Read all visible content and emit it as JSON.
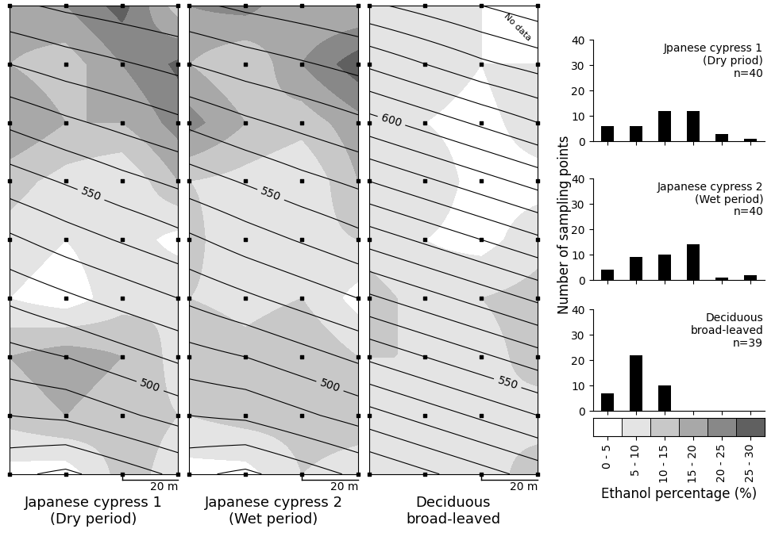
{
  "chart_data": [
    {
      "type": "contour_map",
      "title": "Japanese cypress 1\n(Dry period)",
      "x": [
        0,
        20,
        40,
        60
      ],
      "y": [
        0,
        20,
        40,
        60,
        80,
        100,
        120,
        140,
        160
      ],
      "xlim": [
        0,
        60
      ],
      "ylim": [
        0,
        160
      ],
      "tick_labels": false,
      "cells": [
        [
          3,
          2,
          12,
          8
        ],
        [
          12,
          15,
          12,
          10
        ],
        [
          15,
          18,
          15,
          8
        ],
        [
          5,
          2,
          8,
          10
        ],
        [
          8,
          5,
          8,
          3
        ],
        [
          12,
          8,
          5,
          15
        ],
        [
          20,
          15,
          15,
          22
        ],
        [
          15,
          12,
          20,
          26
        ],
        [
          18,
          20,
          27,
          12
        ]
      ],
      "elevation": [
        [
          462,
          458,
          465,
          472
        ],
        [
          480,
          482,
          488,
          494
        ],
        [
          496,
          500,
          506,
          512
        ],
        [
          512,
          518,
          524,
          530
        ],
        [
          528,
          535,
          541,
          547
        ],
        [
          545,
          551,
          557,
          562
        ],
        [
          562,
          568,
          573,
          578
        ],
        [
          580,
          585,
          589,
          593
        ],
        [
          598,
          602,
          605,
          608
        ]
      ],
      "contour_levels": [
        460,
        470,
        480,
        490,
        500,
        510,
        520,
        530,
        540,
        550,
        560,
        570,
        580,
        590,
        600
      ],
      "contour_labels": [
        500,
        550
      ],
      "scale_bar": {
        "length": 20,
        "label": "20 m"
      }
    },
    {
      "type": "contour_map",
      "title": "Japanese cypress 2\n(Wet period)",
      "x": [
        0,
        20,
        40,
        60
      ],
      "y": [
        0,
        20,
        40,
        60,
        80,
        100,
        120,
        140,
        160
      ],
      "xlim": [
        0,
        60
      ],
      "ylim": [
        0,
        160
      ],
      "tick_labels": false,
      "cells": [
        [
          3,
          3,
          10,
          8
        ],
        [
          10,
          12,
          12,
          12
        ],
        [
          15,
          12,
          15,
          10
        ],
        [
          10,
          8,
          10,
          3
        ],
        [
          12,
          5,
          8,
          10
        ],
        [
          10,
          8,
          5,
          15
        ],
        [
          22,
          15,
          12,
          18
        ],
        [
          15,
          10,
          20,
          28
        ],
        [
          20,
          22,
          15,
          15
        ]
      ],
      "elevation": [
        [
          462,
          458,
          465,
          472
        ],
        [
          480,
          482,
          488,
          494
        ],
        [
          496,
          500,
          506,
          512
        ],
        [
          512,
          518,
          524,
          530
        ],
        [
          528,
          535,
          541,
          547
        ],
        [
          545,
          551,
          557,
          562
        ],
        [
          562,
          568,
          573,
          578
        ],
        [
          580,
          585,
          589,
          593
        ],
        [
          598,
          602,
          605,
          608
        ]
      ],
      "contour_levels": [
        460,
        470,
        480,
        490,
        500,
        510,
        520,
        530,
        540,
        550,
        560,
        570,
        580,
        590,
        600
      ],
      "contour_labels": [
        500,
        550
      ],
      "scale_bar": {
        "length": 20,
        "label": "20 m"
      }
    },
    {
      "type": "contour_map",
      "title": "Deciduous\nbroad-leaved",
      "x": [
        0,
        20,
        40,
        60
      ],
      "y": [
        0,
        20,
        40,
        60,
        80,
        100,
        120,
        140,
        160
      ],
      "xlim": [
        0,
        60
      ],
      "ylim": [
        0,
        160
      ],
      "tick_labels": false,
      "cells": [
        [
          8,
          5,
          8,
          12
        ],
        [
          8,
          10,
          10,
          8
        ],
        [
          10,
          10,
          8,
          12
        ],
        [
          12,
          8,
          10,
          12
        ],
        [
          8,
          5,
          3,
          8
        ],
        [
          10,
          8,
          3,
          3
        ],
        [
          8,
          5,
          3,
          8
        ],
        [
          10,
          8,
          5,
          10
        ],
        [
          8,
          8,
          10,
          null
        ]
      ],
      "elevation": [
        [
          520,
          524,
          528,
          532
        ],
        [
          533,
          537,
          541,
          545
        ],
        [
          546,
          550,
          554,
          558
        ],
        [
          559,
          563,
          567,
          571
        ],
        [
          572,
          576,
          580,
          584
        ],
        [
          585,
          589,
          593,
          597
        ],
        [
          598,
          602,
          606,
          610
        ],
        [
          611,
          615,
          619,
          622
        ],
        [
          624,
          627,
          630,
          633
        ]
      ],
      "contour_levels": [
        520,
        525,
        530,
        535,
        540,
        545,
        550,
        555,
        560,
        565,
        570,
        575,
        580,
        585,
        590,
        595,
        600,
        605,
        610,
        615,
        620,
        625,
        630
      ],
      "contour_labels": [
        550,
        600
      ],
      "annotations": [
        "No data"
      ],
      "scale_bar": {
        "length": 20,
        "label": "20 m"
      }
    },
    {
      "type": "bar",
      "title": "Jpanese cypress 1\n(Dry priod)",
      "subtitle": "n=40",
      "categories": [
        "0 - 5",
        "5 - 10",
        "10 - 15",
        "15 - 20",
        "20 - 25",
        "25 - 30"
      ],
      "values": [
        6,
        6,
        12,
        12,
        3,
        1
      ],
      "color": "#000000",
      "ylim": [
        0,
        40
      ],
      "yticks": [
        0,
        10,
        20,
        30,
        40
      ],
      "tick_labels": "y"
    },
    {
      "type": "bar",
      "title": "Japanese cypress 2\n(Wet period)",
      "subtitle": "n=40",
      "ylabel": "Number of sampling points",
      "categories": [
        "0 - 5",
        "5 - 10",
        "10 - 15",
        "15 - 20",
        "20 - 25",
        "25 - 30"
      ],
      "values": [
        4,
        9,
        10,
        14,
        1,
        2
      ],
      "color": "#000000",
      "ylim": [
        0,
        40
      ],
      "yticks": [
        0,
        10,
        20,
        30,
        40
      ],
      "tick_labels": "y"
    },
    {
      "type": "bar",
      "title": "Deciduous\nbroad-leaved",
      "subtitle": "n=39",
      "categories": [
        "0 - 5",
        "5 - 10",
        "10 - 15",
        "15 - 20",
        "20 - 25",
        "25 - 30"
      ],
      "values": [
        7,
        22,
        10,
        0,
        0,
        0
      ],
      "color": "#000000",
      "ylim": [
        0,
        40
      ],
      "yticks": [
        0,
        10,
        20,
        30,
        40
      ],
      "tick_labels": "y"
    },
    {
      "type": "color_legend",
      "xlabel": "Ethanol percentage (%)",
      "categories": [
        "0 - 5",
        "5 - 10",
        "10 - 15",
        "15 - 20",
        "20 - 25",
        "25 - 30"
      ],
      "bins": [
        0,
        5,
        10,
        15,
        20,
        25,
        30
      ],
      "colors": [
        "#ffffff",
        "#e4e4e4",
        "#c8c8c8",
        "#a8a8a8",
        "#888888",
        "#606060"
      ]
    }
  ]
}
